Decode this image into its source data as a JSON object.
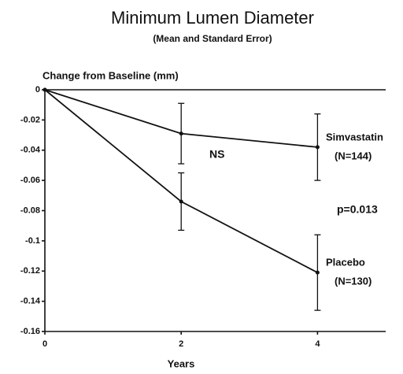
{
  "chart_data": {
    "type": "line",
    "title": "Minimum Lumen Diameter",
    "subtitle": "(Mean and Standard Error)",
    "y_label": "Change from Baseline (mm)",
    "x_label": "Years",
    "x": [
      0,
      2,
      4
    ],
    "series": [
      {
        "name": "Simvastatin",
        "note": "(N=144)",
        "color": "#111111",
        "values": [
          0,
          -0.029,
          -0.038
        ],
        "errors": [
          null,
          0.02,
          0.022
        ]
      },
      {
        "name": "Placebo",
        "note": "(N=130)",
        "color": "#111111",
        "values": [
          0,
          -0.074,
          -0.121
        ],
        "errors": [
          null,
          0.019,
          0.025
        ]
      }
    ],
    "annotations": [
      "NS",
      "p=0.013"
    ],
    "xlim": [
      0,
      5
    ],
    "xticks": [
      0,
      2,
      4
    ],
    "ylim": [
      -0.16,
      0
    ],
    "yticks": [
      0,
      -0.02,
      -0.04,
      -0.06,
      -0.08,
      -0.1,
      -0.12,
      -0.14,
      -0.16
    ]
  }
}
